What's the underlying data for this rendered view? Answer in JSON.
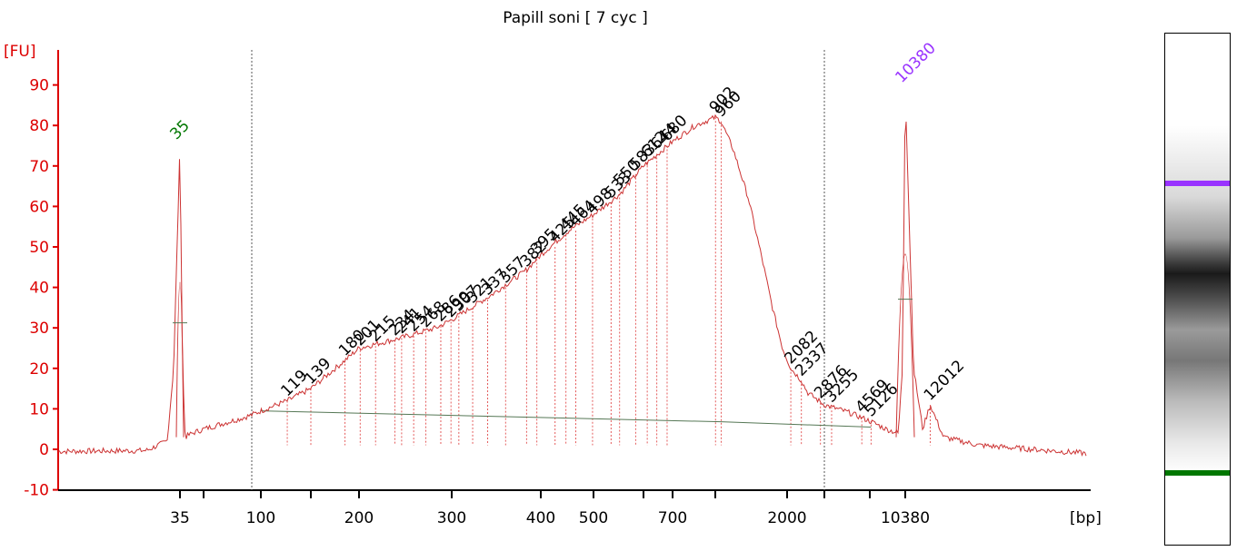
{
  "chart_data": {
    "type": "line",
    "title": "Papill soni  [ 7 cyc ]",
    "xlabel": "[bp]",
    "ylabel": "[FU]",
    "ylim": [
      -10,
      95
    ],
    "yticks": [
      -10,
      0,
      10,
      20,
      30,
      40,
      50,
      60,
      70,
      80,
      90
    ],
    "x_scale": "bp-sizing (log-like, marker calibrated)",
    "xtick_labels": [
      "35",
      "100",
      "200",
      "300",
      "400",
      "500",
      "700",
      "2000",
      "10380"
    ],
    "grid": false,
    "lower_marker": {
      "size_bp": 35,
      "height_fu": 75,
      "color": "#007700"
    },
    "upper_marker": {
      "size_bp": 10380,
      "height_fu": 89,
      "color": "#9933ff"
    },
    "range_bounds_bp": [
      90,
      3000
    ],
    "trace_color": "#cc3333",
    "trace_profile": [
      [
        20,
        -0.5
      ],
      [
        30,
        -0.3
      ],
      [
        33,
        2
      ],
      [
        34,
        20
      ],
      [
        35,
        75
      ],
      [
        36,
        20
      ],
      [
        37,
        3
      ],
      [
        40,
        4
      ],
      [
        45,
        5
      ],
      [
        55,
        6
      ],
      [
        75,
        7.5
      ],
      [
        90,
        8.5
      ],
      [
        100,
        9.5
      ],
      [
        119,
        12
      ],
      [
        139,
        15
      ],
      [
        180,
        22
      ],
      [
        200,
        25
      ],
      [
        240,
        27.5
      ],
      [
        280,
        30
      ],
      [
        300,
        32
      ],
      [
        340,
        38
      ],
      [
        380,
        44
      ],
      [
        400,
        48
      ],
      [
        450,
        54
      ],
      [
        500,
        58
      ],
      [
        550,
        63
      ],
      [
        600,
        70
      ],
      [
        700,
        76
      ],
      [
        800,
        80
      ],
      [
        900,
        82
      ],
      [
        960,
        81
      ],
      [
        1100,
        74
      ],
      [
        1300,
        62
      ],
      [
        1500,
        48
      ],
      [
        1700,
        35
      ],
      [
        1900,
        25
      ],
      [
        2082,
        20
      ],
      [
        2337,
        17
      ],
      [
        2500,
        14
      ],
      [
        3000,
        11
      ],
      [
        4000,
        9
      ],
      [
        5000,
        7
      ],
      [
        7000,
        5
      ],
      [
        9000,
        4
      ],
      [
        9800,
        20
      ],
      [
        10380,
        89
      ],
      [
        10900,
        20
      ],
      [
        11500,
        5
      ],
      [
        12012,
        11
      ],
      [
        13000,
        3
      ],
      [
        16000,
        1
      ],
      [
        22000,
        0
      ],
      [
        30000,
        -1
      ]
    ],
    "peak_labels": [
      {
        "label": "119",
        "bp": 119,
        "fu": 12
      },
      {
        "label": "139",
        "bp": 139,
        "fu": 15
      },
      {
        "label": "180",
        "bp": 180,
        "fu": 22
      },
      {
        "label": "201",
        "bp": 201,
        "fu": 24.5
      },
      {
        "label": "215",
        "bp": 215,
        "fu": 25.5
      },
      {
        "label": "234",
        "bp": 234,
        "fu": 27
      },
      {
        "label": "241",
        "bp": 241,
        "fu": 27.5
      },
      {
        "label": "254",
        "bp": 254,
        "fu": 28
      },
      {
        "label": "268",
        "bp": 268,
        "fu": 29
      },
      {
        "label": "286",
        "bp": 286,
        "fu": 30.5
      },
      {
        "label": "299",
        "bp": 299,
        "fu": 31.5
      },
      {
        "label": "307",
        "bp": 307,
        "fu": 33
      },
      {
        "label": "321",
        "bp": 321,
        "fu": 35
      },
      {
        "label": "337",
        "bp": 337,
        "fu": 37
      },
      {
        "label": "357",
        "bp": 357,
        "fu": 40
      },
      {
        "label": "382",
        "bp": 382,
        "fu": 44
      },
      {
        "label": "395",
        "bp": 395,
        "fu": 47
      },
      {
        "label": "425",
        "bp": 425,
        "fu": 50
      },
      {
        "label": "445",
        "bp": 445,
        "fu": 53
      },
      {
        "label": "464",
        "bp": 464,
        "fu": 54
      },
      {
        "label": "498",
        "bp": 498,
        "fu": 57
      },
      {
        "label": "533",
        "bp": 533,
        "fu": 61
      },
      {
        "label": "550",
        "bp": 550,
        "fu": 64
      },
      {
        "label": "583",
        "bp": 583,
        "fu": 68
      },
      {
        "label": "612",
        "bp": 612,
        "fu": 71
      },
      {
        "label": "644",
        "bp": 644,
        "fu": 73
      },
      {
        "label": "680",
        "bp": 680,
        "fu": 75
      },
      {
        "label": "902",
        "bp": 902,
        "fu": 82
      },
      {
        "label": "960",
        "bp": 960,
        "fu": 81
      },
      {
        "label": "2082",
        "bp": 2082,
        "fu": 20
      },
      {
        "label": "2337",
        "bp": 2337,
        "fu": 17
      },
      {
        "label": "2876",
        "bp": 2876,
        "fu": 11.5
      },
      {
        "label": "3255",
        "bp": 3255,
        "fu": 10.5
      },
      {
        "label": "4569",
        "bp": 4569,
        "fu": 8
      },
      {
        "label": "5126",
        "bp": 5126,
        "fu": 7
      },
      {
        "label": "12012",
        "bp": 12012,
        "fu": 11
      }
    ]
  }
}
